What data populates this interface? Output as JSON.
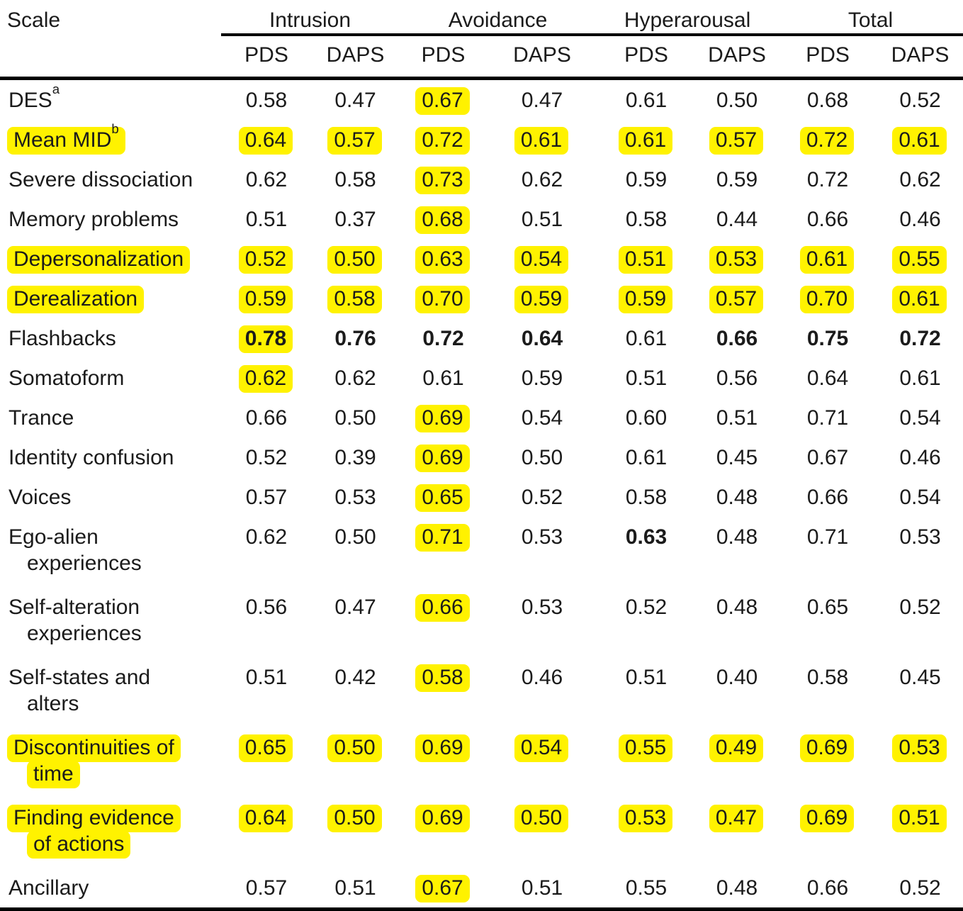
{
  "table": {
    "corner_header": "Scale",
    "highlight_color": "#FFF200",
    "groups": [
      {
        "label": "Intrusion",
        "columns": [
          "PDS",
          "DAPS"
        ]
      },
      {
        "label": "Avoidance",
        "columns": [
          "PDS",
          "DAPS"
        ]
      },
      {
        "label": "Hyperarousal",
        "columns": [
          "PDS",
          "DAPS"
        ]
      },
      {
        "label": "Total",
        "columns": [
          "PDS",
          "DAPS"
        ]
      }
    ],
    "rows": [
      {
        "label": "DES",
        "sup": "a",
        "label_highlighted": false,
        "values": [
          "0.58",
          "0.47",
          "0.67",
          "0.47",
          "0.61",
          "0.50",
          "0.68",
          "0.52"
        ],
        "highlighted_cells": [
          2
        ],
        "bold_cells": []
      },
      {
        "label": "Mean MID",
        "sup": "b",
        "label_highlighted": true,
        "values": [
          "0.64",
          "0.57",
          "0.72",
          "0.61",
          "0.61",
          "0.57",
          "0.72",
          "0.61"
        ],
        "highlighted_cells": [
          0,
          1,
          2,
          3,
          4,
          5,
          6,
          7
        ],
        "bold_cells": []
      },
      {
        "label": "Severe dissociation",
        "label_highlighted": false,
        "values": [
          "0.62",
          "0.58",
          "0.73",
          "0.62",
          "0.59",
          "0.59",
          "0.72",
          "0.62"
        ],
        "highlighted_cells": [
          2
        ],
        "bold_cells": []
      },
      {
        "label": "Memory problems",
        "label_highlighted": false,
        "values": [
          "0.51",
          "0.37",
          "0.68",
          "0.51",
          "0.58",
          "0.44",
          "0.66",
          "0.46"
        ],
        "highlighted_cells": [
          2
        ],
        "bold_cells": []
      },
      {
        "label": "Depersonalization",
        "label_highlighted": true,
        "values": [
          "0.52",
          "0.50",
          "0.63",
          "0.54",
          "0.51",
          "0.53",
          "0.61",
          "0.55"
        ],
        "highlighted_cells": [
          0,
          1,
          2,
          3,
          4,
          5,
          6,
          7
        ],
        "bold_cells": []
      },
      {
        "label": "Derealization",
        "label_highlighted": true,
        "values": [
          "0.59",
          "0.58",
          "0.70",
          "0.59",
          "0.59",
          "0.57",
          "0.70",
          "0.61"
        ],
        "highlighted_cells": [
          0,
          1,
          2,
          3,
          4,
          5,
          6,
          7
        ],
        "bold_cells": []
      },
      {
        "label": "Flashbacks",
        "label_highlighted": false,
        "values": [
          "0.78",
          "0.76",
          "0.72",
          "0.64",
          "0.61",
          "0.66",
          "0.75",
          "0.72"
        ],
        "highlighted_cells": [
          0
        ],
        "bold_cells": [
          0,
          1,
          2,
          3,
          5,
          6,
          7
        ]
      },
      {
        "label": "Somatoform",
        "label_highlighted": false,
        "values": [
          "0.62",
          "0.62",
          "0.61",
          "0.59",
          "0.51",
          "0.56",
          "0.64",
          "0.61"
        ],
        "highlighted_cells": [
          0
        ],
        "bold_cells": []
      },
      {
        "label": "Trance",
        "label_highlighted": false,
        "values": [
          "0.66",
          "0.50",
          "0.69",
          "0.54",
          "0.60",
          "0.51",
          "0.71",
          "0.54"
        ],
        "highlighted_cells": [
          2
        ],
        "bold_cells": []
      },
      {
        "label": "Identity confusion",
        "label_highlighted": false,
        "values": [
          "0.52",
          "0.39",
          "0.69",
          "0.50",
          "0.61",
          "0.45",
          "0.67",
          "0.46"
        ],
        "highlighted_cells": [
          2
        ],
        "bold_cells": []
      },
      {
        "label": "Voices",
        "label_highlighted": false,
        "values": [
          "0.57",
          "0.53",
          "0.65",
          "0.52",
          "0.58",
          "0.48",
          "0.66",
          "0.54"
        ],
        "highlighted_cells": [
          2
        ],
        "bold_cells": []
      },
      {
        "label": "Ego-alien\nexperiences",
        "label_highlighted": false,
        "values": [
          "0.62",
          "0.50",
          "0.71",
          "0.53",
          "0.63",
          "0.48",
          "0.71",
          "0.53"
        ],
        "highlighted_cells": [
          2
        ],
        "bold_cells": [
          4
        ]
      },
      {
        "label": "Self-alteration\nexperiences",
        "label_highlighted": false,
        "values": [
          "0.56",
          "0.47",
          "0.66",
          "0.53",
          "0.52",
          "0.48",
          "0.65",
          "0.52"
        ],
        "highlighted_cells": [
          2
        ],
        "bold_cells": []
      },
      {
        "label": "Self-states and\nalters",
        "label_highlighted": false,
        "values": [
          "0.51",
          "0.42",
          "0.58",
          "0.46",
          "0.51",
          "0.40",
          "0.58",
          "0.45"
        ],
        "highlighted_cells": [
          2
        ],
        "bold_cells": []
      },
      {
        "label": "Discontinuities of\ntime",
        "label_highlighted": true,
        "values": [
          "0.65",
          "0.50",
          "0.69",
          "0.54",
          "0.55",
          "0.49",
          "0.69",
          "0.53"
        ],
        "highlighted_cells": [
          0,
          1,
          2,
          3,
          4,
          5,
          6,
          7
        ],
        "bold_cells": []
      },
      {
        "label": "Finding evidence\nof actions",
        "label_highlighted": true,
        "values": [
          "0.64",
          "0.50",
          "0.69",
          "0.50",
          "0.53",
          "0.47",
          "0.69",
          "0.51"
        ],
        "highlighted_cells": [
          0,
          1,
          2,
          3,
          4,
          5,
          6,
          7
        ],
        "bold_cells": []
      },
      {
        "label": "Ancillary",
        "label_highlighted": false,
        "values": [
          "0.57",
          "0.51",
          "0.67",
          "0.51",
          "0.55",
          "0.48",
          "0.66",
          "0.52"
        ],
        "highlighted_cells": [
          2
        ],
        "bold_cells": []
      }
    ]
  }
}
